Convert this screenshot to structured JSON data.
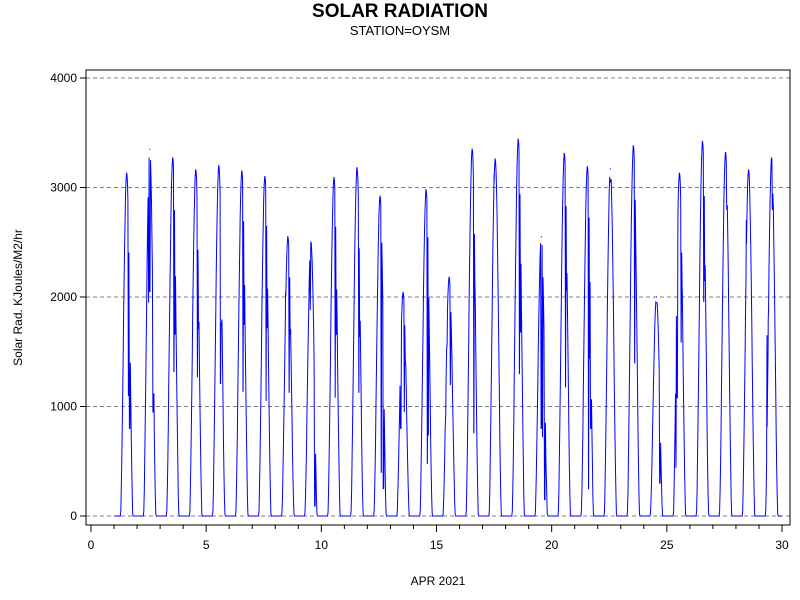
{
  "chart_data": {
    "type": "line",
    "title": "SOLAR RADIATION",
    "subtitle": "STATION=OYSM",
    "xlabel": "APR 2021",
    "ylabel": "Solar Rad. KJoules/M2/hr",
    "xlim": [
      0,
      30
    ],
    "ylim": [
      0,
      4000
    ],
    "x_ticks": [
      0,
      5,
      10,
      15,
      20,
      25,
      30
    ],
    "x_tick_labels": [
      "0",
      "5",
      "10",
      "15",
      "20",
      "25",
      "30"
    ],
    "x_minor_step": 1,
    "y_ticks": [
      0,
      1000,
      2000,
      3000,
      4000
    ],
    "y_tick_labels": [
      "0",
      "1000",
      "2000",
      "3000",
      "4000"
    ],
    "grid": "horizontal dashed",
    "colors": {
      "line": "#0000ff",
      "grid": "#808080",
      "axis": "#000000"
    },
    "series": [
      {
        "daily_peaks": [
          {
            "day": 1,
            "peak": 3130,
            "dips": [
              [
                1.63,
                1100
              ],
              [
                1.68,
                800
              ]
            ]
          },
          {
            "day": 2,
            "peak": 3350,
            "dips": [
              [
                2.5,
                1950
              ],
              [
                2.55,
                2050
              ],
              [
                2.7,
                950
              ]
            ]
          },
          {
            "day": 3,
            "peak": 3270,
            "dips": [
              [
                3.6,
                1320
              ],
              [
                3.65,
                1660
              ]
            ]
          },
          {
            "day": 4,
            "peak": 3160,
            "dips": [
              [
                4.62,
                1270
              ],
              [
                4.67,
                1710
              ]
            ]
          },
          {
            "day": 5,
            "peak": 3200,
            "dips": [
              [
                5.62,
                1210
              ],
              [
                5.66,
                1760
              ]
            ]
          },
          {
            "day": 6,
            "peak": 3150,
            "dips": [
              [
                6.6,
                1140
              ],
              [
                6.65,
                1750
              ]
            ]
          },
          {
            "day": 7,
            "peak": 3100,
            "dips": [
              [
                7.6,
                1050
              ],
              [
                7.65,
                1720
              ]
            ]
          },
          {
            "day": 8,
            "peak": 2550,
            "dips": [
              [
                8.45,
                2050
              ],
              [
                8.6,
                1130
              ],
              [
                8.65,
                1660
              ]
            ]
          },
          {
            "day": 9,
            "peak": 2500,
            "dips": [
              [
                9.52,
                1880
              ],
              [
                9.72,
                90
              ]
            ]
          },
          {
            "day": 10,
            "peak": 3090,
            "dips": [
              [
                10.6,
                1080
              ],
              [
                10.65,
                1660
              ]
            ]
          },
          {
            "day": 11,
            "peak": 3180,
            "dips": [
              [
                11.63,
                1130
              ],
              [
                11.67,
                1640
              ]
            ]
          },
          {
            "day": 12,
            "peak": 2920,
            "dips": [
              [
                12.6,
                400
              ],
              [
                12.7,
                250
              ]
            ]
          },
          {
            "day": 13,
            "peak": 2040,
            "dips": [
              [
                13.45,
                800
              ],
              [
                13.6,
                950
              ],
              [
                13.65,
                1410
              ]
            ]
          },
          {
            "day": 14,
            "peak": 2980,
            "dips": [
              [
                14.6,
                480
              ],
              [
                14.65,
                740
              ]
            ]
          },
          {
            "day": 15,
            "peak": 2180,
            "dips": [
              [
                15.4,
                900
              ],
              [
                15.45,
                1560
              ],
              [
                15.6,
                1200
              ]
            ]
          },
          {
            "day": 16,
            "peak": 3350,
            "dips": [
              [
                16.62,
                760
              ],
              [
                16.67,
                2100
              ]
            ]
          },
          {
            "day": 17,
            "peak": 3260,
            "dips": [
              [
                17.5,
                3120
              ]
            ]
          },
          {
            "day": 18,
            "peak": 3440,
            "dips": [
              [
                18.6,
                1300
              ],
              [
                18.65,
                1680
              ]
            ]
          },
          {
            "day": 19,
            "peak": 2550,
            "dips": [
              [
                19.55,
                800
              ],
              [
                19.6,
                720
              ],
              [
                19.7,
                150
              ],
              [
                19.75,
                500
              ]
            ]
          },
          {
            "day": 20,
            "peak": 3310,
            "dips": [
              [
                20.6,
                1180
              ],
              [
                20.65,
                2060
              ]
            ]
          },
          {
            "day": 21,
            "peak": 3190,
            "dips": [
              [
                21.6,
                250
              ],
              [
                21.65,
                1440
              ],
              [
                21.7,
                800
              ]
            ]
          },
          {
            "day": 22,
            "peak": 3170,
            "dips": [
              [
                22.55,
                3050
              ]
            ]
          },
          {
            "day": 23,
            "peak": 3380,
            "dips": [
              [
                23.6,
                1400
              ]
            ]
          },
          {
            "day": 24,
            "peak": 2000,
            "dips": [
              [
                24.55,
                1950
              ],
              [
                24.7,
                300
              ]
            ]
          },
          {
            "day": 25,
            "peak": 3130,
            "dips": [
              [
                25.4,
                440
              ],
              [
                25.45,
                1080
              ],
              [
                25.62,
                1590
              ],
              [
                25.67,
                2050
              ]
            ]
          },
          {
            "day": 26,
            "peak": 3420,
            "dips": [
              [
                26.6,
                1960
              ],
              [
                26.65,
                2150
              ]
            ]
          },
          {
            "day": 27,
            "peak": 3320,
            "dips": [
              [
                27.6,
                2800
              ]
            ]
          },
          {
            "day": 28,
            "peak": 3160,
            "dips": [
              [
                28.45,
                2700
              ]
            ]
          },
          {
            "day": 29,
            "peak": 3270,
            "dips": [
              [
                29.35,
                1650
              ],
              [
                29.4,
                1780
              ],
              [
                29.58,
                2800
              ],
              [
                29.6,
                2940
              ]
            ]
          }
        ],
        "daylight_window_days": [
          0.28,
          0.82
        ]
      }
    ]
  }
}
